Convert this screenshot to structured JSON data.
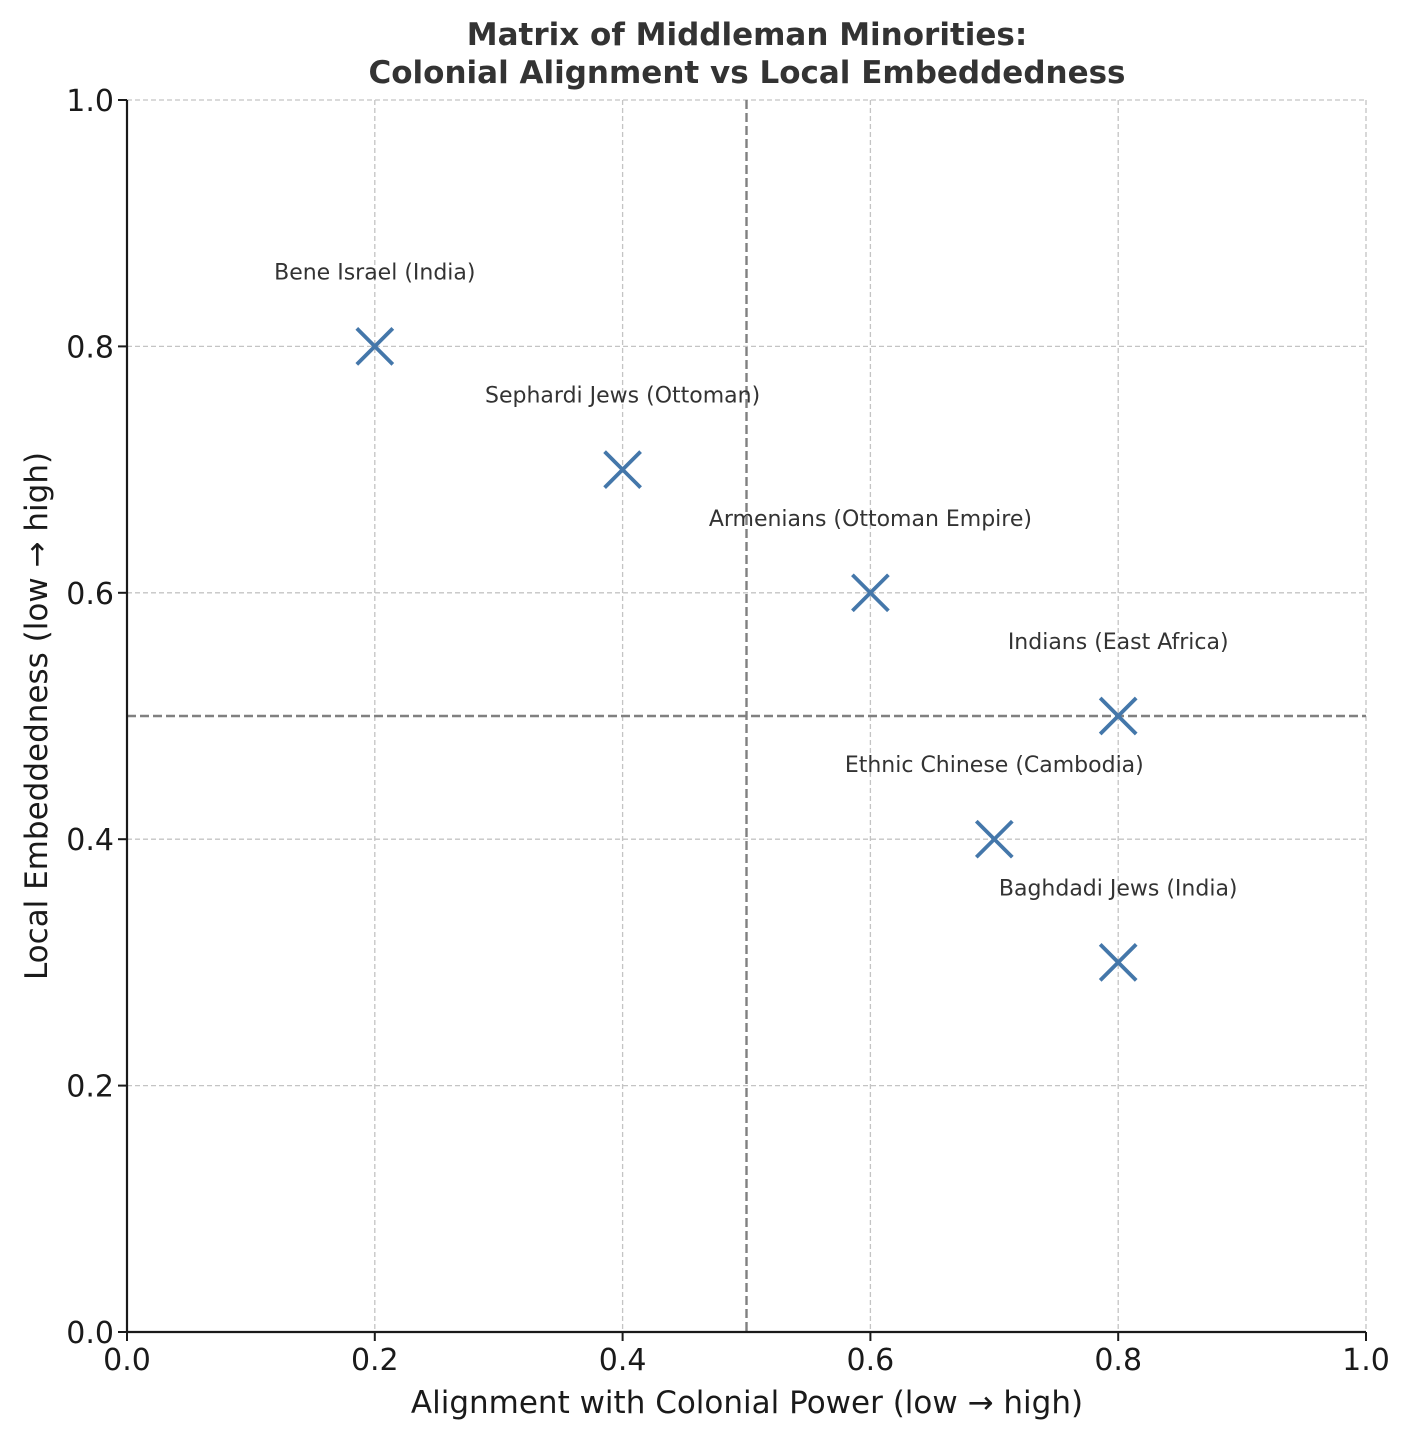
{
  "chart_data": {
    "type": "scatter",
    "title_lines": [
      "Matrix of Middleman Minorities:",
      "Colonial Alignment vs Local Embeddedness"
    ],
    "xlabel": "Alignment with Colonial Power (low → high)",
    "ylabel": "Local Embeddedness (low → high)",
    "xlim": [
      0,
      1
    ],
    "ylim": [
      0,
      1
    ],
    "xticks": [
      "0.0",
      "0.2",
      "0.4",
      "0.6",
      "0.8",
      "1.0"
    ],
    "yticks": [
      "0.0",
      "0.2",
      "0.4",
      "0.6",
      "0.8",
      "1.0"
    ],
    "grid": true,
    "grid_style": "dashed",
    "reference_lines": {
      "x": 0.5,
      "y": 0.5
    },
    "marker": "x",
    "marker_color": "#4477aa",
    "points": [
      {
        "label": "Bene Israel (India)",
        "x": 0.2,
        "y": 0.8
      },
      {
        "label": "Sephardi Jews (Ottoman)",
        "x": 0.4,
        "y": 0.7
      },
      {
        "label": "Armenians (Ottoman Empire)",
        "x": 0.6,
        "y": 0.6
      },
      {
        "label": "Indians (East Africa)",
        "x": 0.8,
        "y": 0.5
      },
      {
        "label": "Ethnic Chinese (Cambodia)",
        "x": 0.7,
        "y": 0.4
      },
      {
        "label": "Baghdadi Jews (India)",
        "x": 0.8,
        "y": 0.3
      }
    ]
  }
}
